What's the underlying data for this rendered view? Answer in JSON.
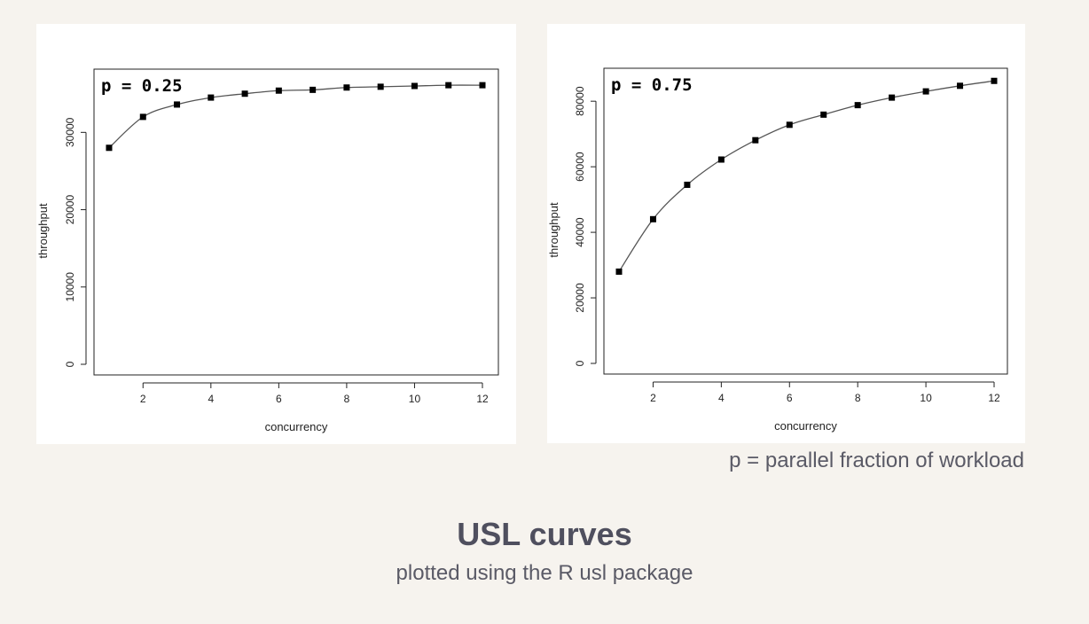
{
  "footnote": "p = parallel fraction of workload",
  "slide": {
    "title": "USL curves",
    "subtitle": "plotted using the R usl package"
  },
  "chart_data": [
    {
      "type": "scatter",
      "annotation": "p = 0.25",
      "xlabel": "concurrency",
      "ylabel": "throughput",
      "xlim": [
        1,
        12
      ],
      "ylim": [
        0,
        36000
      ],
      "xticks": [
        2,
        4,
        6,
        8,
        10,
        12
      ],
      "yticks": [
        0,
        10000,
        20000,
        30000
      ],
      "series": [
        {
          "x": [
            1,
            2,
            3,
            4,
            5,
            6,
            7,
            8,
            9,
            10,
            11,
            12
          ],
          "y": [
            28000,
            32000,
            33600,
            34500,
            35000,
            35400,
            35500,
            35800,
            35900,
            36000,
            36100,
            36100
          ]
        }
      ],
      "fit_line": true,
      "legend": "none",
      "grid": false
    },
    {
      "type": "scatter",
      "annotation": "p = 0.75",
      "xlabel": "concurrency",
      "ylabel": "throughput",
      "xlim": [
        1,
        12
      ],
      "ylim": [
        0,
        86000
      ],
      "xticks": [
        2,
        4,
        6,
        8,
        10,
        12
      ],
      "yticks": [
        0,
        20000,
        40000,
        60000,
        80000
      ],
      "series": [
        {
          "x": [
            1,
            2,
            3,
            4,
            5,
            6,
            7,
            8,
            9,
            10,
            11,
            12
          ],
          "y": [
            28000,
            44000,
            54500,
            62200,
            68100,
            72800,
            75900,
            78800,
            81100,
            83000,
            84700,
            86200
          ]
        }
      ],
      "fit_line": true,
      "legend": "none",
      "grid": false
    }
  ]
}
